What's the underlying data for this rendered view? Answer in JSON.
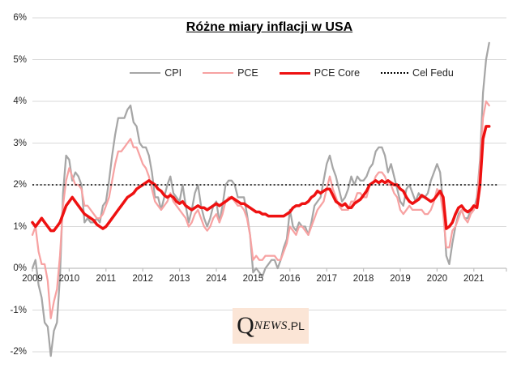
{
  "title": "Różne miary inflacji w USA",
  "watermark": {
    "q": "Q",
    "news": "NEWS",
    "pl": ".PL"
  },
  "chart_data": {
    "type": "line",
    "title": "Różne miary inflacji w USA",
    "frequency": "monthly",
    "x_start": "2009-01",
    "x_end": "2021-06",
    "x_tick_labels": [
      "2009",
      "2010",
      "2011",
      "2012",
      "2013",
      "2014",
      "2015",
      "2016",
      "2017",
      "2018",
      "2019",
      "2020",
      "2021"
    ],
    "y_tick_labels": [
      "6%",
      "5%",
      "4%",
      "3%",
      "2%",
      "1%",
      "0%",
      "-1%",
      "-2%"
    ],
    "ylim": [
      -2,
      6
    ],
    "grid": true,
    "legend_position": "top",
    "reference_line": {
      "label": "Cel Fedu",
      "value": 2,
      "color": "#000000",
      "style": "dotted"
    },
    "series": [
      {
        "name": "CPI",
        "color": "#a6a6a6",
        "width": 2.25,
        "values": [
          0.0,
          0.2,
          -0.4,
          -0.7,
          -1.3,
          -1.4,
          -2.1,
          -1.5,
          -1.3,
          -0.2,
          1.8,
          2.7,
          2.6,
          2.1,
          2.3,
          2.2,
          2.0,
          1.1,
          1.2,
          1.1,
          1.1,
          1.2,
          1.1,
          1.5,
          1.6,
          2.1,
          2.7,
          3.2,
          3.6,
          3.6,
          3.6,
          3.8,
          3.9,
          3.5,
          3.4,
          3.0,
          2.9,
          2.9,
          2.7,
          2.3,
          1.7,
          1.7,
          1.4,
          1.7,
          2.0,
          2.2,
          1.8,
          1.7,
          1.6,
          2.0,
          1.5,
          1.1,
          1.4,
          1.8,
          2.0,
          1.5,
          1.2,
          1.0,
          1.2,
          1.5,
          1.6,
          1.1,
          1.5,
          2.0,
          2.1,
          2.1,
          2.0,
          1.7,
          1.7,
          1.7,
          1.3,
          0.8,
          -0.1,
          0.0,
          -0.1,
          -0.2,
          0.0,
          0.1,
          0.2,
          0.2,
          0.0,
          0.2,
          0.5,
          0.7,
          1.4,
          1.0,
          0.9,
          1.1,
          1.0,
          1.0,
          0.8,
          1.1,
          1.5,
          1.6,
          1.7,
          2.1,
          2.5,
          2.7,
          2.4,
          2.2,
          1.9,
          1.6,
          1.7,
          1.9,
          2.2,
          2.0,
          2.2,
          2.1,
          2.1,
          2.2,
          2.4,
          2.5,
          2.8,
          2.9,
          2.9,
          2.7,
          2.3,
          2.5,
          2.2,
          1.9,
          1.6,
          1.5,
          1.9,
          2.0,
          1.8,
          1.6,
          1.8,
          1.7,
          1.7,
          1.8,
          2.1,
          2.3,
          2.5,
          2.3,
          1.5,
          0.3,
          0.1,
          0.6,
          1.0,
          1.3,
          1.4,
          1.2,
          1.2,
          1.4,
          1.4,
          1.7,
          2.6,
          4.2,
          5.0,
          5.4
        ]
      },
      {
        "name": "PCE",
        "color": "#f7a2a2",
        "width": 2.25,
        "values": [
          0.8,
          1.0,
          0.4,
          0.1,
          0.1,
          -0.3,
          -1.2,
          -0.8,
          -0.5,
          0.3,
          1.5,
          2.1,
          2.4,
          2.2,
          2.0,
          2.0,
          1.9,
          1.5,
          1.5,
          1.4,
          1.3,
          1.2,
          1.2,
          1.3,
          1.5,
          1.7,
          2.1,
          2.5,
          2.8,
          2.8,
          2.9,
          3.0,
          3.1,
          2.9,
          2.9,
          2.7,
          2.5,
          2.4,
          2.2,
          1.9,
          1.6,
          1.5,
          1.4,
          1.5,
          1.6,
          1.8,
          1.6,
          1.5,
          1.4,
          1.3,
          1.2,
          1.0,
          1.1,
          1.3,
          1.4,
          1.2,
          1.0,
          0.9,
          1.0,
          1.2,
          1.3,
          1.1,
          1.3,
          1.6,
          1.7,
          1.7,
          1.6,
          1.5,
          1.5,
          1.4,
          1.2,
          0.8,
          0.2,
          0.3,
          0.2,
          0.2,
          0.3,
          0.3,
          0.3,
          0.3,
          0.2,
          0.2,
          0.4,
          0.6,
          1.0,
          0.9,
          0.8,
          1.0,
          1.0,
          0.9,
          0.8,
          1.0,
          1.2,
          1.4,
          1.5,
          1.6,
          1.9,
          2.2,
          1.9,
          1.7,
          1.5,
          1.4,
          1.4,
          1.4,
          1.6,
          1.6,
          1.8,
          1.8,
          1.7,
          1.7,
          2.0,
          2.0,
          2.2,
          2.3,
          2.3,
          2.2,
          2.0,
          2.0,
          1.8,
          1.7,
          1.4,
          1.3,
          1.4,
          1.5,
          1.4,
          1.4,
          1.4,
          1.4,
          1.3,
          1.3,
          1.4,
          1.6,
          1.9,
          1.8,
          1.3,
          0.5,
          0.5,
          0.9,
          1.0,
          1.2,
          1.4,
          1.2,
          1.1,
          1.3,
          1.4,
          1.6,
          2.5,
          3.6,
          4.0,
          3.9
        ]
      },
      {
        "name": "PCE Core",
        "color": "#ee1111",
        "width": 3.5,
        "values": [
          1.1,
          1.0,
          1.1,
          1.2,
          1.1,
          1.0,
          0.9,
          0.9,
          1.0,
          1.1,
          1.3,
          1.5,
          1.6,
          1.7,
          1.6,
          1.5,
          1.4,
          1.3,
          1.25,
          1.2,
          1.15,
          1.05,
          1.0,
          0.95,
          1.0,
          1.1,
          1.2,
          1.3,
          1.4,
          1.5,
          1.6,
          1.7,
          1.75,
          1.8,
          1.9,
          1.95,
          2.0,
          2.05,
          2.1,
          2.05,
          2.0,
          1.9,
          1.85,
          1.75,
          1.7,
          1.75,
          1.7,
          1.6,
          1.55,
          1.6,
          1.5,
          1.45,
          1.4,
          1.45,
          1.5,
          1.45,
          1.45,
          1.4,
          1.45,
          1.5,
          1.55,
          1.5,
          1.55,
          1.6,
          1.65,
          1.7,
          1.65,
          1.6,
          1.55,
          1.55,
          1.5,
          1.45,
          1.4,
          1.35,
          1.35,
          1.3,
          1.3,
          1.25,
          1.25,
          1.25,
          1.25,
          1.25,
          1.25,
          1.3,
          1.35,
          1.45,
          1.5,
          1.5,
          1.55,
          1.55,
          1.6,
          1.7,
          1.75,
          1.85,
          1.8,
          1.85,
          1.9,
          1.9,
          1.75,
          1.6,
          1.55,
          1.5,
          1.55,
          1.45,
          1.45,
          1.55,
          1.6,
          1.65,
          1.75,
          1.85,
          2.0,
          2.05,
          2.1,
          2.05,
          2.1,
          2.05,
          2.1,
          2.05,
          2.0,
          2.0,
          1.9,
          1.85,
          1.7,
          1.6,
          1.55,
          1.6,
          1.65,
          1.75,
          1.7,
          1.65,
          1.6,
          1.65,
          1.75,
          1.85,
          1.7,
          0.95,
          1.0,
          1.1,
          1.3,
          1.45,
          1.5,
          1.4,
          1.35,
          1.4,
          1.5,
          1.45,
          2.0,
          3.1,
          3.4,
          3.4
        ]
      }
    ]
  }
}
